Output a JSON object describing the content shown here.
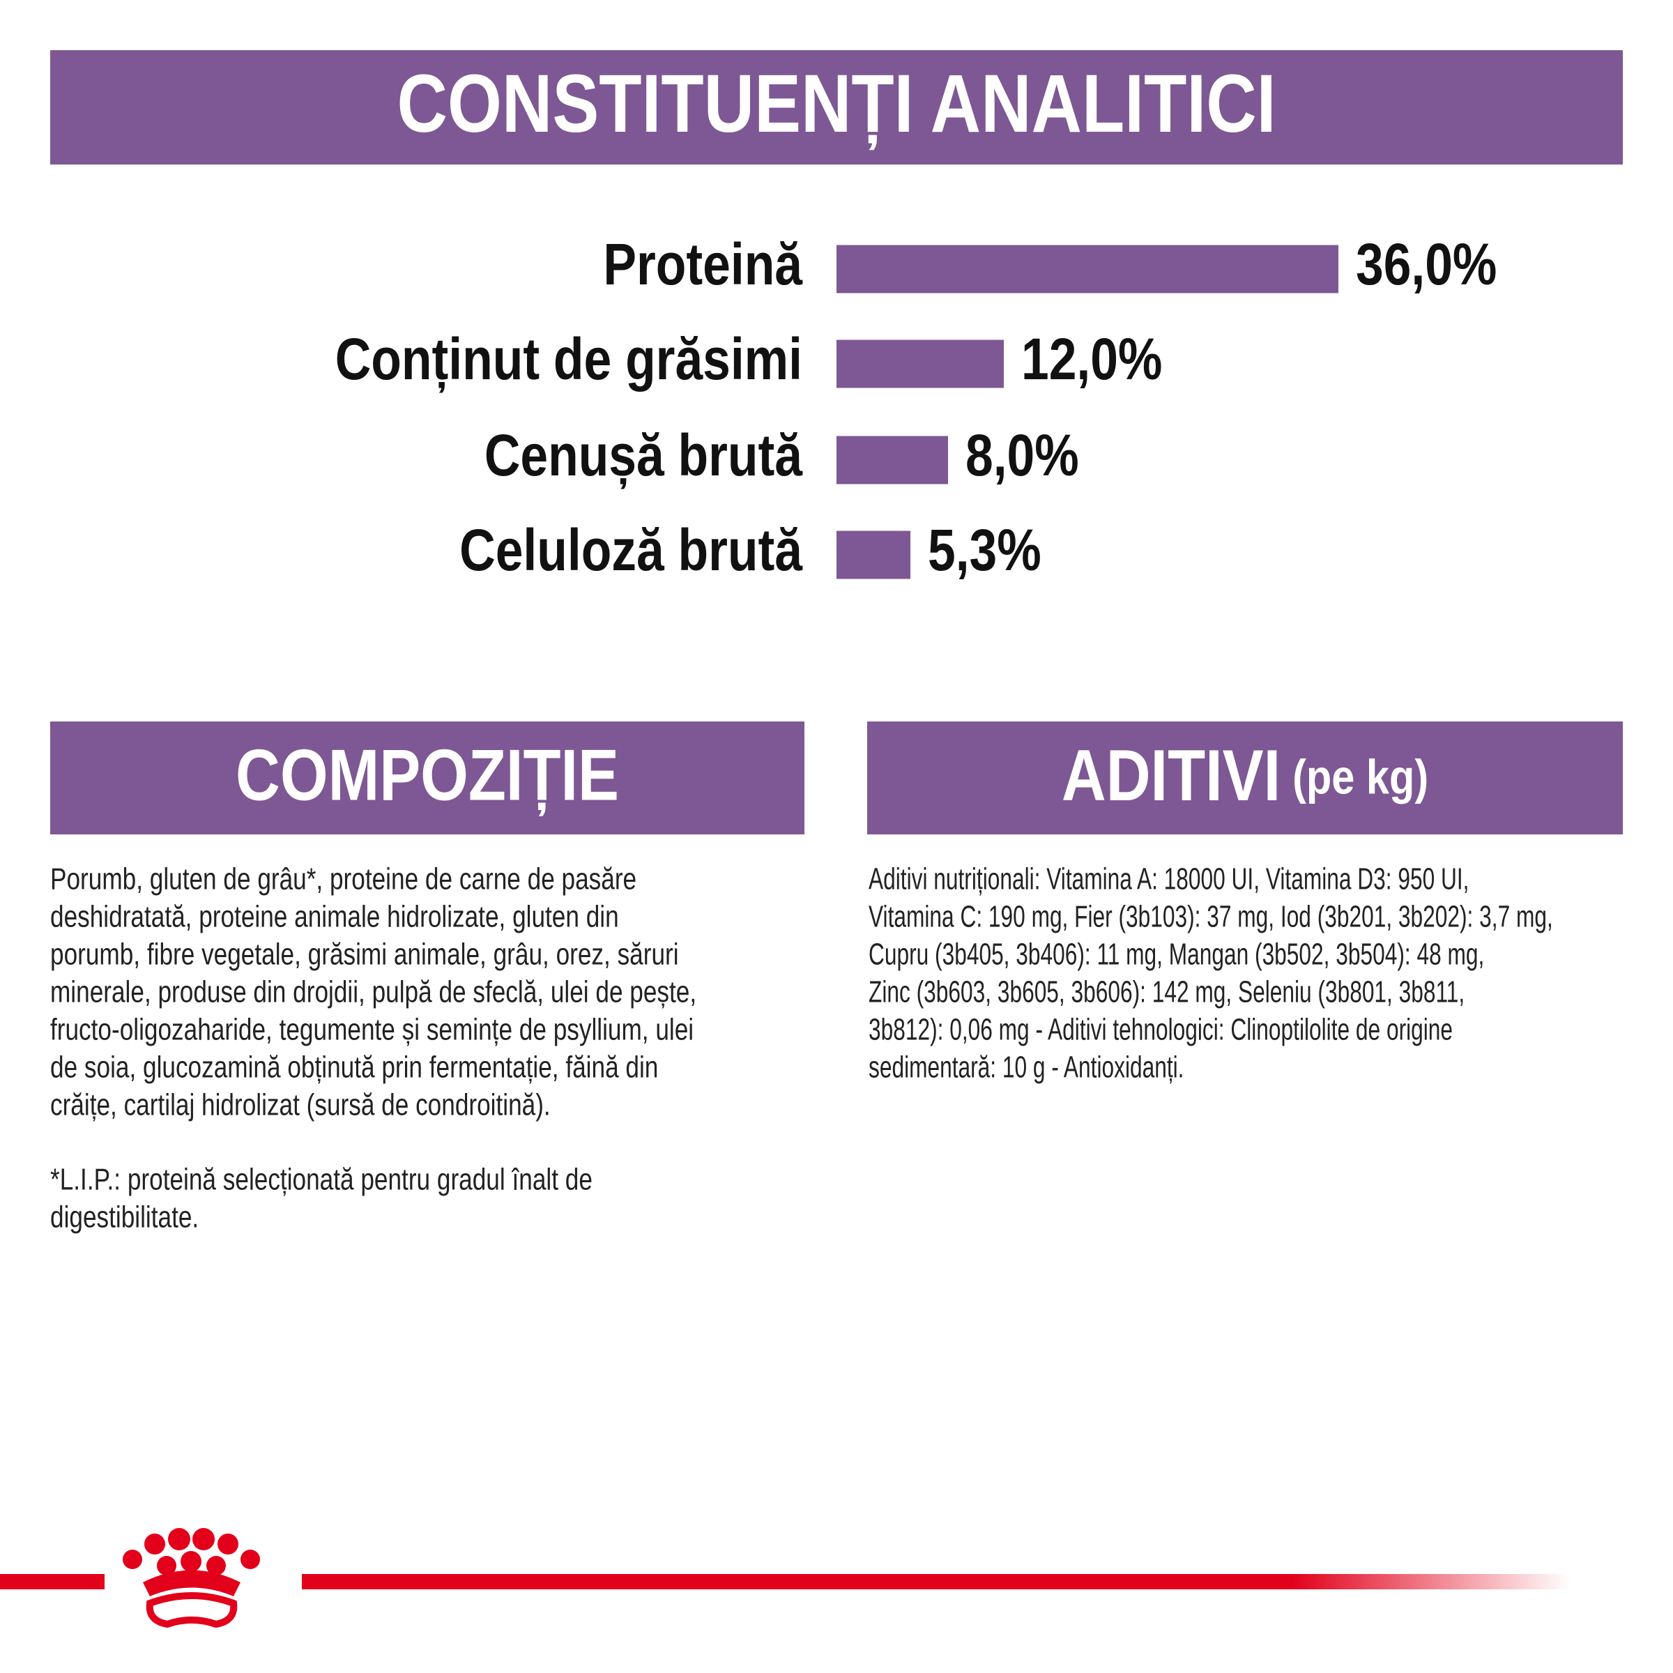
{
  "chart_data": {
    "type": "bar",
    "title": "CONSTITUENȚI ANALITICI",
    "categories": [
      "Proteină",
      "Conținut de grăsimi",
      "Cenușă brută",
      "Celuloză brută"
    ],
    "values": [
      36.0,
      12.0,
      8.0,
      5.3
    ],
    "value_labels": [
      "36,0%",
      "12,0%",
      "8,0%",
      "5,3%"
    ],
    "color": "#7d5894"
  },
  "composition": {
    "title": "COMPOZIȚIE",
    "lines": [
      "Porumb, gluten de grâu*, proteine de carne de pasăre",
      "deshidratată, proteine animale hidrolizate, gluten din",
      "porumb, fibre vegetale, grăsimi animale, grâu, orez, săruri",
      "minerale, produse din drojdii, pulpă de sfeclă, ulei de pește,",
      "fructo-oligozaharide, tegumente și semințe de psyllium, ulei",
      "de soia, glucozamină obținută prin fermentație, făină din",
      "crăițe, cartilaj hidrolizat (sursă de condroitină)."
    ],
    "footnote": [
      "*L.I.P.: proteină selecționată pentru gradul înalt de",
      "digestibilitate."
    ]
  },
  "additives": {
    "title": "ADITIVI",
    "subtitle": "(pe kg)",
    "lines": [
      "Aditivi nutriționali: Vitamina A: 18000 UI, Vitamina D3: 950 UI,",
      "Vitamina C: 190 mg, Fier (3b103): 37 mg, Iod (3b201, 3b202): 3,7 mg,",
      "Cupru (3b405, 3b406): 11 mg, Mangan (3b502, 3b504): 48 mg,",
      "Zinc (3b603, 3b605, 3b606): 142 mg, Seleniu (3b801, 3b811,",
      "3b812): 0,06 mg - Aditivi tehnologici: Clinoptilolite de origine",
      "sedimentară: 10 g - Antioxidanți."
    ]
  }
}
